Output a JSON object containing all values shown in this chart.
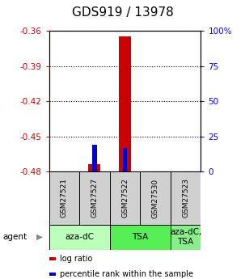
{
  "title": "GDS919 / 13978",
  "samples": [
    "GSM27521",
    "GSM27527",
    "GSM27522",
    "GSM27530",
    "GSM27523"
  ],
  "log_ratios": [
    null,
    -0.474,
    -0.365,
    null,
    null
  ],
  "percentile_ranks_pct": [
    null,
    19.0,
    16.5,
    null,
    null
  ],
  "ylim_left": [
    -0.48,
    -0.36
  ],
  "ylim_right": [
    0,
    100
  ],
  "yticks_left": [
    -0.48,
    -0.45,
    -0.42,
    -0.39,
    -0.36
  ],
  "yticks_right": [
    0,
    25,
    50,
    75,
    100
  ],
  "ytick_labels_left": [
    "-0.48",
    "-0.45",
    "-0.42",
    "-0.39",
    "-0.36"
  ],
  "ytick_labels_right": [
    "0",
    "25",
    "50",
    "75",
    "100%"
  ],
  "agent_groups": [
    {
      "label": "aza-dC",
      "span": [
        0,
        2
      ],
      "color": "#bbffbb"
    },
    {
      "label": "TSA",
      "span": [
        2,
        4
      ],
      "color": "#55ee55"
    },
    {
      "label": "aza-dC,\nTSA",
      "span": [
        4,
        5
      ],
      "color": "#88ee88"
    }
  ],
  "bar_color_red": "#cc0000",
  "bar_color_blue": "#0000cc",
  "bar_width": 0.4,
  "percentile_bar_width": 0.15,
  "agent_label": "agent",
  "legend_items": [
    {
      "color": "#cc0000",
      "label": "log ratio"
    },
    {
      "color": "#0000cc",
      "label": "percentile rank within the sample"
    }
  ],
  "title_fontsize": 11,
  "tick_fontsize": 7.5,
  "sample_fontsize": 6.5,
  "agent_fontsize": 7.5,
  "legend_fontsize": 7,
  "grid_color": "black",
  "grid_linestyle": "dotted",
  "grid_linewidth": 0.8,
  "background_color": "#ffffff",
  "sample_box_color": "#d0d0d0",
  "left_tick_color": "#cc0000",
  "right_tick_color": "#0000ff"
}
